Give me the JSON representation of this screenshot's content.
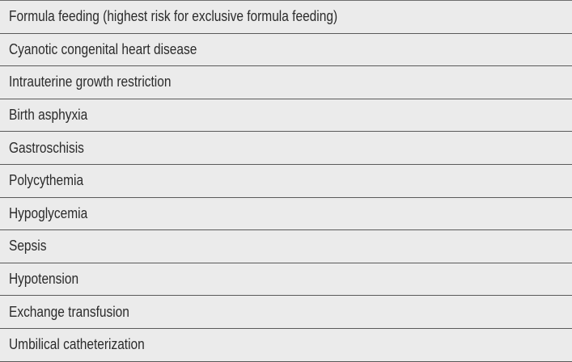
{
  "table": {
    "rows": [
      "Formula feeding (highest risk for exclusive formula feeding)",
      "Cyanotic congenital heart disease",
      "Intrauterine growth restriction",
      "Birth asphyxia",
      "Gastroschisis",
      "Polycythemia",
      "Hypoglycemia",
      "Sepsis",
      "Hypotension",
      "Exchange transfusion",
      "Umbilical catheterization"
    ]
  }
}
